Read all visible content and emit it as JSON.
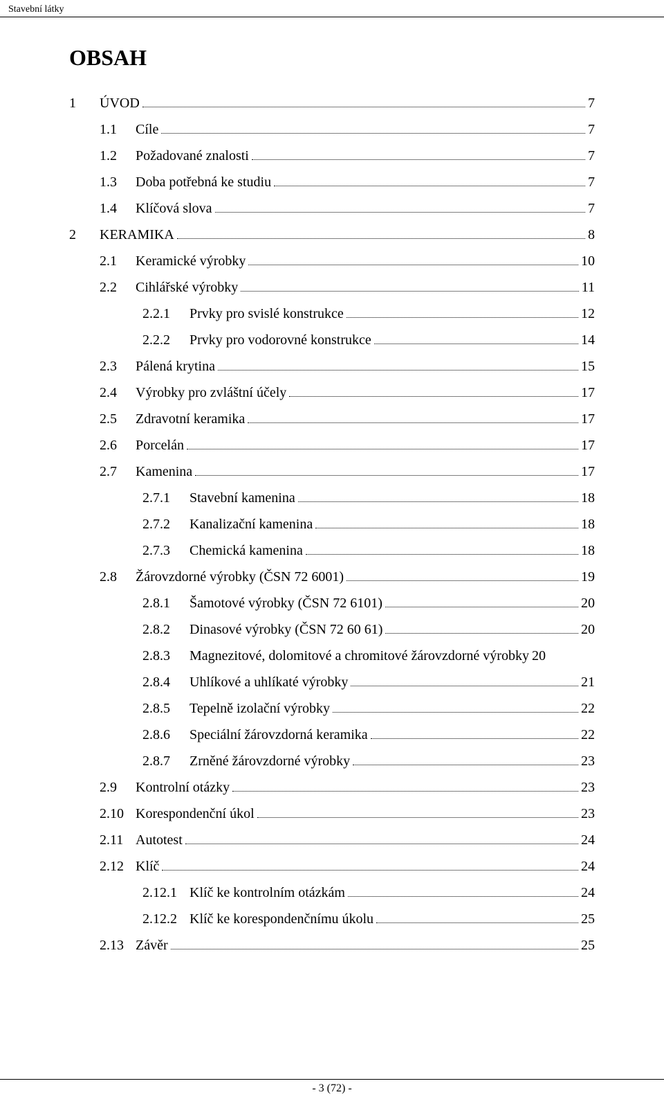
{
  "running_header": "Stavební látky",
  "title": "OBSAH",
  "footer": "- 3 (72) -",
  "toc": [
    {
      "num": "1",
      "label": "ÚVOD",
      "page": "7",
      "level": 0
    },
    {
      "num": "1.1",
      "label": "Cíle",
      "page": "7",
      "level": 1
    },
    {
      "num": "1.2",
      "label": "Požadované znalosti",
      "page": "7",
      "level": 1
    },
    {
      "num": "1.3",
      "label": "Doba potřebná ke studiu",
      "page": "7",
      "level": 1
    },
    {
      "num": "1.4",
      "label": "Klíčová slova",
      "page": "7",
      "level": 1
    },
    {
      "num": "2",
      "label": "KERAMIKA",
      "page": "8",
      "level": 0
    },
    {
      "num": "2.1",
      "label": "Keramické výrobky",
      "page": "10",
      "level": 1
    },
    {
      "num": "2.2",
      "label": "Cihlářské výrobky",
      "page": "11",
      "level": 1
    },
    {
      "num": "2.2.1",
      "label": "Prvky pro svislé konstrukce",
      "page": "12",
      "level": 2
    },
    {
      "num": "2.2.2",
      "label": "Prvky pro vodorovné konstrukce",
      "page": "14",
      "level": 2
    },
    {
      "num": "2.3",
      "label": "Pálená krytina",
      "page": "15",
      "level": 1
    },
    {
      "num": "2.4",
      "label": "Výrobky pro zvláštní účely",
      "page": "17",
      "level": 1
    },
    {
      "num": "2.5",
      "label": "Zdravotní keramika",
      "page": "17",
      "level": 1
    },
    {
      "num": "2.6",
      "label": "Porcelán",
      "page": "17",
      "level": 1
    },
    {
      "num": "2.7",
      "label": "Kamenina",
      "page": "17",
      "level": 1
    },
    {
      "num": "2.7.1",
      "label": "Stavební kamenina",
      "page": "18",
      "level": 2
    },
    {
      "num": "2.7.2",
      "label": "Kanalizační kamenina",
      "page": "18",
      "level": 2
    },
    {
      "num": "2.7.3",
      "label": "Chemická kamenina",
      "page": "18",
      "level": 2
    },
    {
      "num": "2.8",
      "label": "Žárovzdorné výrobky (ČSN 72 6001)",
      "page": "19",
      "level": 1
    },
    {
      "num": "2.8.1",
      "label": "Šamotové výrobky (ČSN 72 6101)",
      "page": "20",
      "level": 2
    },
    {
      "num": "2.8.2",
      "label": "Dinasové výrobky (ČSN 72 60 61)",
      "page": "20",
      "level": 2
    },
    {
      "num": "2.8.3",
      "label": "Magnezitové, dolomitové a chromitové žárovzdorné výrobky",
      "page": "20",
      "level": 2,
      "nodots": true
    },
    {
      "num": "2.8.4",
      "label": "Uhlíkové a uhlíkaté výrobky",
      "page": "21",
      "level": 2
    },
    {
      "num": "2.8.5",
      "label": "Tepelně izolační výrobky",
      "page": "22",
      "level": 2
    },
    {
      "num": "2.8.6",
      "label": "Speciální žárovzdorná keramika",
      "page": "22",
      "level": 2
    },
    {
      "num": "2.8.7",
      "label": "Zrněné žárovzdorné výrobky",
      "page": "23",
      "level": 2
    },
    {
      "num": "2.9",
      "label": "Kontrolní otázky",
      "page": "23",
      "level": 1
    },
    {
      "num": "2.10",
      "label": "Korespondenční úkol",
      "page": "23",
      "level": 1
    },
    {
      "num": "2.11",
      "label": "Autotest",
      "page": "24",
      "level": 1
    },
    {
      "num": "2.12",
      "label": "Klíč",
      "page": "24",
      "level": 1
    },
    {
      "num": "2.12.1",
      "label": "Klíč ke kontrolním otázkám",
      "page": "24",
      "level": 2
    },
    {
      "num": "2.12.2",
      "label": "Klíč ke korespondenčnímu úkolu",
      "page": "25",
      "level": 2
    },
    {
      "num": "2.13",
      "label": "Závěr",
      "page": "25",
      "level": 1
    }
  ]
}
